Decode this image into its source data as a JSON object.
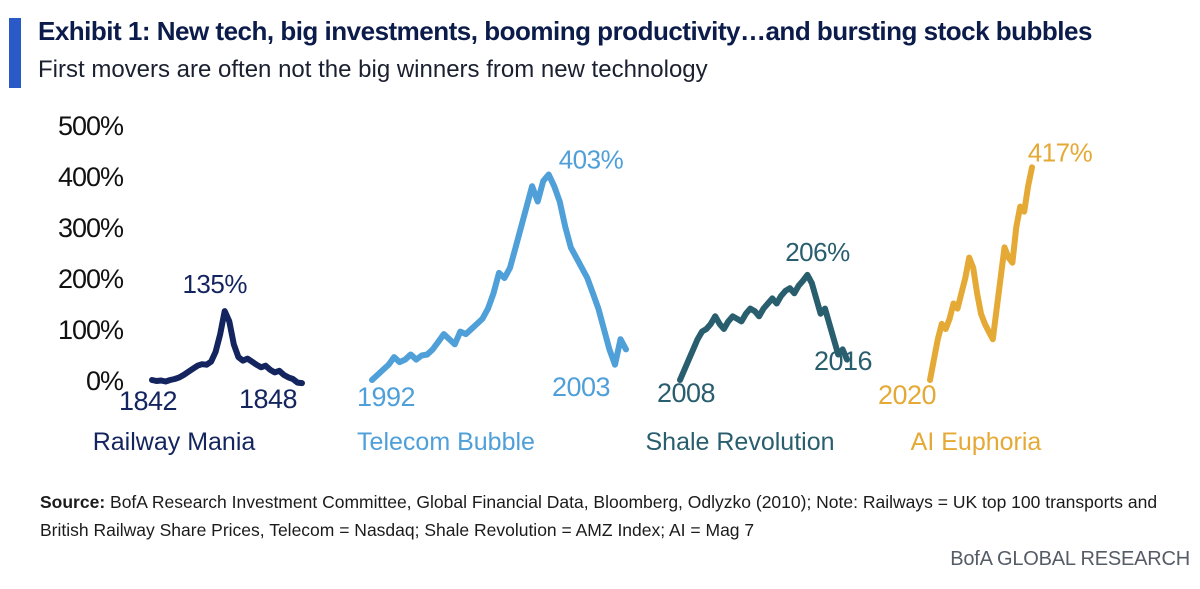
{
  "header": {
    "title": "Exhibit 1: New tech, big investments, booming productivity…and bursting stock bubbles",
    "subtitle": "First movers are often not the big winners from new technology"
  },
  "footer": {
    "source_label": "Source:",
    "source_text": " BofA Research Investment Committee, Global Financial Data, Bloomberg, Odlyzko (2010); Note: Railways = UK top 100 transports and British Railway Share Prices, Telecom = Nasdaq; Shale Revolution = AMZ Index; AI = Mag 7",
    "brand": "BofA GLOBAL RESEARCH"
  },
  "chart_data": {
    "type": "line",
    "ylim": [
      0,
      500
    ],
    "yticks": [
      "0%",
      "100%",
      "200%",
      "300%",
      "400%",
      "500%"
    ],
    "grid": false,
    "series": [
      {
        "name": "Railway Mania",
        "color": "#13245e",
        "start_label": "1842",
        "end_label": "1848",
        "peak_label": "135%",
        "values": [
          0,
          -2,
          -1,
          -3,
          0,
          2,
          5,
          10,
          16,
          22,
          28,
          31,
          30,
          36,
          55,
          90,
          135,
          115,
          70,
          45,
          38,
          42,
          36,
          30,
          25,
          28,
          20,
          15,
          18,
          10,
          5,
          2,
          -5,
          -6
        ]
      },
      {
        "name": "Telecom Bubble",
        "color": "#4f9fd9",
        "start_label": "1992",
        "end_label": "2003",
        "peak_label": "403%",
        "values": [
          0,
          10,
          20,
          30,
          45,
          35,
          40,
          50,
          40,
          48,
          50,
          60,
          75,
          90,
          80,
          70,
          95,
          90,
          100,
          110,
          120,
          140,
          170,
          210,
          200,
          220,
          260,
          300,
          340,
          380,
          350,
          390,
          403,
          380,
          350,
          300,
          260,
          240,
          220,
          200,
          170,
          140,
          100,
          60,
          30,
          80,
          60
        ]
      },
      {
        "name": "Shale Revolution",
        "color": "#295e6e",
        "start_label": "2008",
        "end_label": "2016",
        "peak_label": "206%",
        "values": [
          0,
          20,
          40,
          60,
          80,
          95,
          100,
          110,
          125,
          110,
          100,
          115,
          125,
          120,
          115,
          130,
          140,
          135,
          125,
          140,
          150,
          160,
          150,
          165,
          175,
          180,
          170,
          185,
          195,
          206,
          190,
          160,
          130,
          140,
          110,
          80,
          50,
          60,
          40
        ]
      },
      {
        "name": "AI Euphoria",
        "color": "#e5a935",
        "start_label": "2020",
        "end_label": "",
        "peak_label": "417%",
        "values": [
          0,
          40,
          80,
          110,
          100,
          120,
          150,
          140,
          170,
          200,
          240,
          220,
          170,
          130,
          110,
          95,
          80,
          140,
          200,
          260,
          240,
          230,
          300,
          340,
          330,
          380,
          417
        ]
      }
    ]
  }
}
